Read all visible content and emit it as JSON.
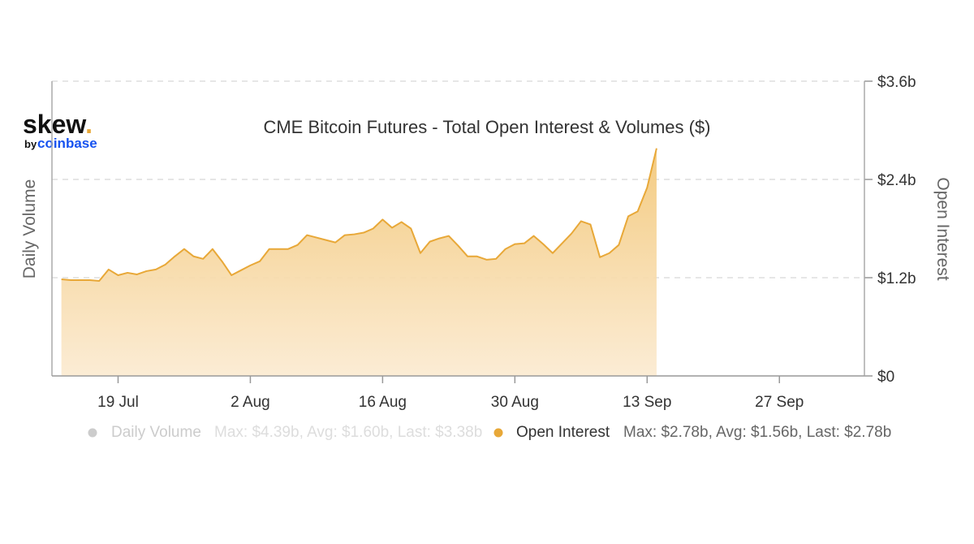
{
  "logo": {
    "name": "skew",
    "dot": ".",
    "by": "by",
    "brand": "coinbase"
  },
  "chart_data": {
    "type": "area",
    "title": "CME Bitcoin Futures - Total Open Interest & Volumes ($)",
    "y_left_label": "Daily Volume",
    "y_right_label": "Open Interest",
    "y_range": [
      0,
      3.6
    ],
    "y_ticks": [
      {
        "value": 0,
        "label": "$0"
      },
      {
        "value": 1.2,
        "label": "$1.2b"
      },
      {
        "value": 2.4,
        "label": "$2.4b"
      },
      {
        "value": 3.6,
        "label": "$3.6b"
      }
    ],
    "x_range": [
      "2021-07-12",
      "2021-10-06"
    ],
    "x_ticks": [
      {
        "date": "2021-07-19",
        "label": "19 Jul"
      },
      {
        "date": "2021-08-02",
        "label": "2 Aug"
      },
      {
        "date": "2021-08-16",
        "label": "16 Aug"
      },
      {
        "date": "2021-08-30",
        "label": "30 Aug"
      },
      {
        "date": "2021-09-13",
        "label": "13 Sep"
      },
      {
        "date": "2021-09-27",
        "label": "27 Sep"
      }
    ],
    "grid": "horizontal-dashed",
    "legend_position": "bottom",
    "legend": [
      {
        "name": "Daily Volume",
        "stats": "Max: $4.39b, Avg: $1.60b, Last: $3.38b",
        "visible": false,
        "color": "#cccccc"
      },
      {
        "name": "Open Interest",
        "stats": "Max: $2.78b, Avg: $1.56b, Last: $2.78b",
        "visible": true,
        "color": "#e8a838"
      }
    ],
    "series": [
      {
        "name": "Open Interest",
        "color": "#e8a838",
        "points": [
          [
            "2021-07-13",
            1.18
          ],
          [
            "2021-07-14",
            1.17
          ],
          [
            "2021-07-15",
            1.17
          ],
          [
            "2021-07-16",
            1.17
          ],
          [
            "2021-07-17",
            1.16
          ],
          [
            "2021-07-18",
            1.3
          ],
          [
            "2021-07-19",
            1.23
          ],
          [
            "2021-07-20",
            1.26
          ],
          [
            "2021-07-21",
            1.24
          ],
          [
            "2021-07-22",
            1.28
          ],
          [
            "2021-07-23",
            1.3
          ],
          [
            "2021-07-24",
            1.36
          ],
          [
            "2021-07-25",
            1.46
          ],
          [
            "2021-07-26",
            1.55
          ],
          [
            "2021-07-27",
            1.46
          ],
          [
            "2021-07-28",
            1.43
          ],
          [
            "2021-07-29",
            1.55
          ],
          [
            "2021-07-30",
            1.4
          ],
          [
            "2021-07-31",
            1.23
          ],
          [
            "2021-08-01",
            1.29
          ],
          [
            "2021-08-02",
            1.35
          ],
          [
            "2021-08-03",
            1.4
          ],
          [
            "2021-08-04",
            1.55
          ],
          [
            "2021-08-05",
            1.55
          ],
          [
            "2021-08-06",
            1.55
          ],
          [
            "2021-08-07",
            1.6
          ],
          [
            "2021-08-08",
            1.72
          ],
          [
            "2021-08-09",
            1.69
          ],
          [
            "2021-08-10",
            1.66
          ],
          [
            "2021-08-11",
            1.63
          ],
          [
            "2021-08-12",
            1.72
          ],
          [
            "2021-08-13",
            1.73
          ],
          [
            "2021-08-14",
            1.75
          ],
          [
            "2021-08-15",
            1.8
          ],
          [
            "2021-08-16",
            1.91
          ],
          [
            "2021-08-17",
            1.81
          ],
          [
            "2021-08-18",
            1.88
          ],
          [
            "2021-08-19",
            1.8
          ],
          [
            "2021-08-20",
            1.5
          ],
          [
            "2021-08-21",
            1.64
          ],
          [
            "2021-08-22",
            1.68
          ],
          [
            "2021-08-23",
            1.71
          ],
          [
            "2021-08-24",
            1.59
          ],
          [
            "2021-08-25",
            1.46
          ],
          [
            "2021-08-26",
            1.46
          ],
          [
            "2021-08-27",
            1.42
          ],
          [
            "2021-08-28",
            1.43
          ],
          [
            "2021-08-29",
            1.55
          ],
          [
            "2021-08-30",
            1.61
          ],
          [
            "2021-08-31",
            1.62
          ],
          [
            "2021-09-01",
            1.71
          ],
          [
            "2021-09-02",
            1.61
          ],
          [
            "2021-09-03",
            1.5
          ],
          [
            "2021-09-04",
            1.62
          ],
          [
            "2021-09-05",
            1.74
          ],
          [
            "2021-09-06",
            1.89
          ],
          [
            "2021-09-07",
            1.85
          ],
          [
            "2021-09-08",
            1.45
          ],
          [
            "2021-09-09",
            1.5
          ],
          [
            "2021-09-10",
            1.6
          ],
          [
            "2021-09-11",
            1.95
          ],
          [
            "2021-09-12",
            2.01
          ],
          [
            "2021-09-13",
            2.3
          ],
          [
            "2021-09-14",
            2.78
          ]
        ]
      }
    ]
  }
}
